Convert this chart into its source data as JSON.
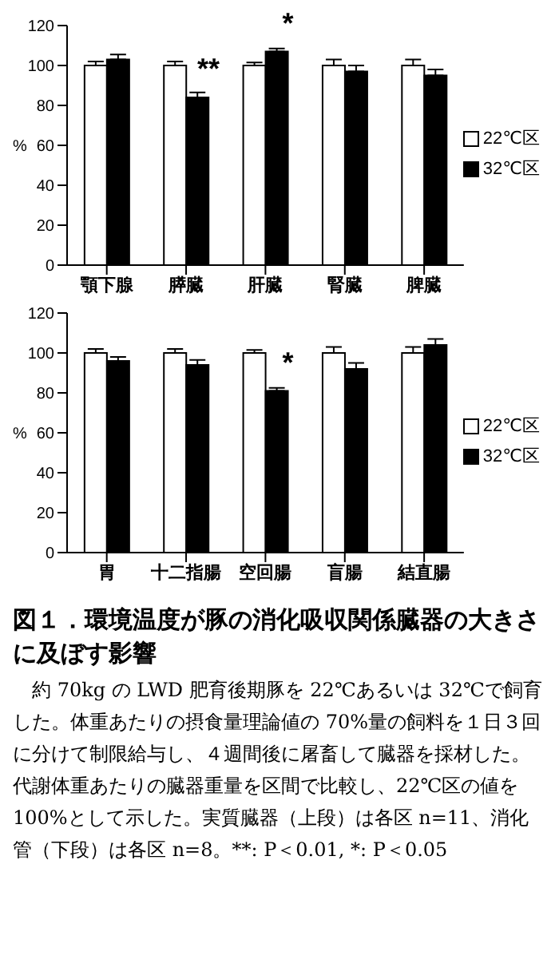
{
  "chart_data": [
    {
      "type": "bar",
      "categories": [
        "顎下腺",
        "膵臓",
        "肝臓",
        "腎臓",
        "脾臓"
      ],
      "ylabel": "%",
      "ylim": [
        0,
        120
      ],
      "yticks": [
        0,
        20,
        40,
        60,
        80,
        100,
        120
      ],
      "legend": "right",
      "grid": false,
      "series": [
        {
          "name": "22℃区",
          "color": "#ffffff",
          "values": [
            100,
            100,
            100,
            100,
            100
          ],
          "errors": [
            2,
            2,
            1.5,
            3,
            3
          ]
        },
        {
          "name": "32℃区",
          "color": "#000000",
          "values": [
            103,
            84,
            107,
            97,
            95
          ],
          "errors": [
            2.5,
            2.5,
            1.5,
            3,
            3
          ]
        }
      ],
      "annotations": [
        {
          "text": "**",
          "x": "膵臓",
          "y": 84
        },
        {
          "text": "*",
          "x": "肝臓",
          "y": 107
        }
      ]
    },
    {
      "type": "bar",
      "categories": [
        "胃",
        "十二指腸",
        "空回腸",
        "盲腸",
        "結直腸"
      ],
      "ylabel": "%",
      "ylim": [
        0,
        120
      ],
      "yticks": [
        0,
        20,
        40,
        60,
        80,
        100,
        120
      ],
      "legend": "right",
      "grid": false,
      "series": [
        {
          "name": "22℃区",
          "color": "#ffffff",
          "values": [
            100,
            100,
            100,
            100,
            100
          ],
          "errors": [
            2,
            2,
            1.5,
            3,
            3
          ]
        },
        {
          "name": "32℃区",
          "color": "#000000",
          "values": [
            96,
            94,
            81,
            92,
            104
          ],
          "errors": [
            2,
            2.5,
            1.5,
            3,
            3
          ]
        }
      ],
      "annotations": [
        {
          "text": "*",
          "x": "空回腸",
          "y": 81
        }
      ]
    },
    {
      "type": "other",
      "title": "図１．環境温度が豚の消化吸収関係臓器の大きさに及ぼす影響",
      "annotations": [
        "約 70kg の LWD 肥育後期豚を 22℃あるいは 32℃で飼育した。体重あたりの摂食量理論値の 70%量の飼料を１日３回に分けて制限給与し、４週間後に屠畜して臓器を採材した。代謝体重あたりの臓器重量を区間で比較し、22℃区の値を 100%として示した。実質臓器（上段）は各区 n=11、消化管（下段）は各区 n=8。**: P＜0.01, *: P＜0.05"
      ]
    }
  ]
}
